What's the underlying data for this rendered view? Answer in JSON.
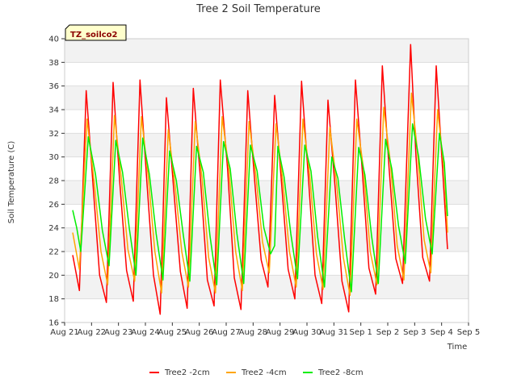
{
  "chart_data": {
    "type": "line",
    "title": "Tree 2 Soil Temperature",
    "xlabel": "Time",
    "ylabel": "Soil Temperature (C)",
    "site_label": "TZ_soilco2",
    "ylim": [
      16,
      40
    ],
    "yticks": [
      16,
      18,
      20,
      22,
      24,
      26,
      28,
      30,
      32,
      34,
      36,
      38,
      40
    ],
    "xlim": [
      0,
      15
    ],
    "xtick_labels": [
      "Aug 21",
      "Aug 22",
      "Aug 23",
      "Aug 24",
      "Aug 25",
      "Aug 26",
      "Aug 27",
      "Aug 28",
      "Aug 29",
      "Aug 30",
      "Aug 31",
      "Sep 1",
      "Sep 2",
      "Sep 3",
      "Sep 4",
      "Sep 5"
    ],
    "grid": true,
    "legend_position": "bottom",
    "series": [
      {
        "name": "Tree2 -2cm",
        "color": "#ff0000",
        "points": [
          [
            0.3,
            21.7
          ],
          [
            0.55,
            18.7
          ],
          [
            0.8,
            35.6
          ],
          [
            1.05,
            27.8
          ],
          [
            1.3,
            20.0
          ],
          [
            1.55,
            17.7
          ],
          [
            1.8,
            36.3
          ],
          [
            2.05,
            27.8
          ],
          [
            2.3,
            20.4
          ],
          [
            2.55,
            17.8
          ],
          [
            2.8,
            36.5
          ],
          [
            3.05,
            28.0
          ],
          [
            3.3,
            20.0
          ],
          [
            3.55,
            16.7
          ],
          [
            3.78,
            35.0
          ],
          [
            4.05,
            27.3
          ],
          [
            4.3,
            20.3
          ],
          [
            4.55,
            17.2
          ],
          [
            4.78,
            35.8
          ],
          [
            5.05,
            28.0
          ],
          [
            5.3,
            19.6
          ],
          [
            5.55,
            17.4
          ],
          [
            5.78,
            36.5
          ],
          [
            6.05,
            29.0
          ],
          [
            6.3,
            19.8
          ],
          [
            6.55,
            17.1
          ],
          [
            6.8,
            35.6
          ],
          [
            7.05,
            28.2
          ],
          [
            7.3,
            21.3
          ],
          [
            7.55,
            19.0
          ],
          [
            7.8,
            35.2
          ],
          [
            8.05,
            28.0
          ],
          [
            8.3,
            20.5
          ],
          [
            8.55,
            18.0
          ],
          [
            8.8,
            36.4
          ],
          [
            9.05,
            28.3
          ],
          [
            9.3,
            20.0
          ],
          [
            9.55,
            17.6
          ],
          [
            9.78,
            34.8
          ],
          [
            10.05,
            27.3
          ],
          [
            10.3,
            19.5
          ],
          [
            10.55,
            16.9
          ],
          [
            10.8,
            36.5
          ],
          [
            11.05,
            29.0
          ],
          [
            11.3,
            20.6
          ],
          [
            11.55,
            18.4
          ],
          [
            11.8,
            37.7
          ],
          [
            12.05,
            29.0
          ],
          [
            12.3,
            21.4
          ],
          [
            12.55,
            19.3
          ],
          [
            12.85,
            39.5
          ],
          [
            13.05,
            30.0
          ],
          [
            13.3,
            21.5
          ],
          [
            13.55,
            19.5
          ],
          [
            13.8,
            37.7
          ],
          [
            14.05,
            28.5
          ],
          [
            14.22,
            22.2
          ]
        ]
      },
      {
        "name": "Tree2 -4cm",
        "color": "#ffa500",
        "points": [
          [
            0.3,
            23.6
          ],
          [
            0.55,
            20.5
          ],
          [
            0.83,
            33.2
          ],
          [
            1.1,
            27.8
          ],
          [
            1.35,
            22.0
          ],
          [
            1.6,
            19.2
          ],
          [
            1.85,
            33.5
          ],
          [
            2.1,
            28.3
          ],
          [
            2.35,
            22.2
          ],
          [
            2.6,
            19.5
          ],
          [
            2.85,
            33.4
          ],
          [
            3.1,
            28.5
          ],
          [
            3.35,
            22.0
          ],
          [
            3.6,
            18.5
          ],
          [
            3.85,
            32.3
          ],
          [
            4.1,
            27.6
          ],
          [
            4.35,
            22.0
          ],
          [
            4.6,
            19.0
          ],
          [
            4.85,
            33.0
          ],
          [
            5.1,
            28.3
          ],
          [
            5.35,
            21.5
          ],
          [
            5.6,
            18.5
          ],
          [
            5.85,
            33.4
          ],
          [
            6.1,
            29.0
          ],
          [
            6.35,
            22.0
          ],
          [
            6.6,
            18.7
          ],
          [
            6.85,
            33.0
          ],
          [
            7.1,
            28.5
          ],
          [
            7.35,
            22.8
          ],
          [
            7.6,
            20.2
          ],
          [
            7.85,
            32.8
          ],
          [
            8.1,
            28.0
          ],
          [
            8.35,
            22.0
          ],
          [
            8.6,
            19.0
          ],
          [
            8.85,
            33.2
          ],
          [
            9.1,
            28.5
          ],
          [
            9.35,
            21.8
          ],
          [
            9.6,
            18.8
          ],
          [
            9.85,
            32.5
          ],
          [
            10.1,
            27.8
          ],
          [
            10.35,
            21.5
          ],
          [
            10.6,
            18.3
          ],
          [
            10.85,
            33.2
          ],
          [
            11.1,
            29.0
          ],
          [
            11.35,
            22.0
          ],
          [
            11.6,
            19.2
          ],
          [
            11.85,
            34.2
          ],
          [
            12.1,
            29.5
          ],
          [
            12.35,
            22.5
          ],
          [
            12.6,
            19.6
          ],
          [
            12.88,
            35.4
          ],
          [
            13.1,
            30.5
          ],
          [
            13.35,
            23.0
          ],
          [
            13.6,
            20.2
          ],
          [
            13.85,
            34.0
          ],
          [
            14.1,
            28.8
          ],
          [
            14.22,
            23.6
          ]
        ]
      },
      {
        "name": "Tree2 -8cm",
        "color": "#00ee00",
        "points": [
          [
            0.3,
            25.5
          ],
          [
            0.45,
            24.0
          ],
          [
            0.6,
            22.0
          ],
          [
            0.88,
            31.7
          ],
          [
            1.15,
            28.5
          ],
          [
            1.4,
            23.8
          ],
          [
            1.65,
            20.8
          ],
          [
            1.9,
            31.4
          ],
          [
            2.15,
            28.7
          ],
          [
            2.4,
            24.0
          ],
          [
            2.65,
            20.0
          ],
          [
            2.9,
            31.6
          ],
          [
            3.15,
            28.5
          ],
          [
            3.4,
            23.5
          ],
          [
            3.65,
            19.6
          ],
          [
            3.9,
            30.5
          ],
          [
            4.15,
            28.0
          ],
          [
            4.4,
            23.5
          ],
          [
            4.65,
            19.5
          ],
          [
            4.9,
            30.9
          ],
          [
            5.15,
            28.7
          ],
          [
            5.4,
            23.3
          ],
          [
            5.65,
            19.2
          ],
          [
            5.9,
            31.3
          ],
          [
            6.15,
            29.0
          ],
          [
            6.4,
            23.5
          ],
          [
            6.65,
            19.3
          ],
          [
            6.9,
            31.0
          ],
          [
            7.15,
            28.8
          ],
          [
            7.4,
            24.0
          ],
          [
            7.65,
            21.8
          ],
          [
            7.8,
            22.5
          ],
          [
            7.92,
            30.9
          ],
          [
            8.15,
            28.3
          ],
          [
            8.4,
            23.5
          ],
          [
            8.65,
            19.7
          ],
          [
            8.92,
            31.0
          ],
          [
            9.15,
            28.8
          ],
          [
            9.4,
            23.2
          ],
          [
            9.65,
            19.0
          ],
          [
            9.92,
            30.0
          ],
          [
            10.15,
            28.2
          ],
          [
            10.4,
            23.0
          ],
          [
            10.65,
            18.6
          ],
          [
            10.92,
            30.8
          ],
          [
            11.15,
            28.5
          ],
          [
            11.4,
            23.3
          ],
          [
            11.65,
            19.3
          ],
          [
            11.92,
            31.5
          ],
          [
            12.15,
            29.0
          ],
          [
            12.4,
            24.2
          ],
          [
            12.65,
            21.0
          ],
          [
            12.92,
            32.8
          ],
          [
            13.15,
            30.0
          ],
          [
            13.4,
            24.8
          ],
          [
            13.65,
            21.8
          ],
          [
            13.92,
            32.0
          ],
          [
            14.1,
            29.5
          ],
          [
            14.22,
            25.0
          ]
        ]
      }
    ]
  }
}
